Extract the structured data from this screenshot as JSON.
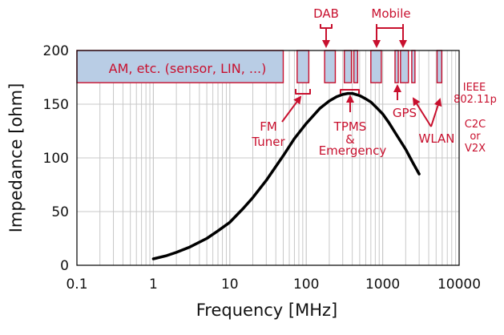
{
  "chart_data": {
    "type": "line",
    "title": "",
    "xlabel": "Frequency [MHz]",
    "ylabel": "Impedance [ohm]",
    "xscale": "log",
    "xlim": [
      0.1,
      10000
    ],
    "ylim": [
      0,
      200
    ],
    "grid": true,
    "x_ticks": [
      "0.1",
      "1",
      "10",
      "100",
      "1000",
      "10000"
    ],
    "y_ticks": [
      "0",
      "50",
      "100",
      "150",
      "200"
    ],
    "series": [
      {
        "name": "",
        "color": "#000000",
        "x": [
          1,
          1.5,
          2,
          3,
          5,
          7,
          10,
          15,
          20,
          30,
          50,
          70,
          100,
          150,
          200,
          250,
          300,
          350,
          400,
          500,
          600,
          700,
          800,
          1000,
          1200,
          1500,
          2000,
          2500,
          3000
        ],
        "y": [
          6,
          9,
          12,
          17,
          25,
          32,
          40,
          53,
          63,
          79,
          102,
          118,
          132,
          146,
          153,
          157,
          159,
          160,
          160,
          158,
          155,
          152,
          148,
          141,
          133,
          122,
          108,
          95,
          85
        ]
      }
    ],
    "bands": [
      {
        "label": "AM, etc. (sensor, LIN, ...)",
        "x0": 0.1,
        "x1": 50
      },
      {
        "x0": 76,
        "x1": 108
      },
      {
        "x0": 174,
        "x1": 240
      },
      {
        "x0": 315,
        "x1": 390
      },
      {
        "x0": 420,
        "x1": 470
      },
      {
        "x0": 700,
        "x1": 960
      },
      {
        "x0": 1450,
        "x1": 1600
      },
      {
        "x0": 1710,
        "x1": 2170
      },
      {
        "x0": 2400,
        "x1": 2500
      },
      {
        "x0": 5150,
        "x1": 5925
      }
    ],
    "annotations": {
      "dab": "DAB",
      "mobile": "Mobile",
      "fm": [
        "FM",
        "Tuner"
      ],
      "tpms": [
        "TPMS",
        "&",
        "Emergency"
      ],
      "gps": "GPS",
      "wlan": "WLAN",
      "ieee": [
        "IEEE",
        "802.11p"
      ],
      "c2c": [
        "C2C",
        "or",
        "V2X"
      ]
    },
    "colors": {
      "curve": "#000000",
      "band_fill": "#b9cde5",
      "band_stroke": "#c8102e",
      "annotation": "#c8102e",
      "grid": "#c8c8c8"
    }
  }
}
